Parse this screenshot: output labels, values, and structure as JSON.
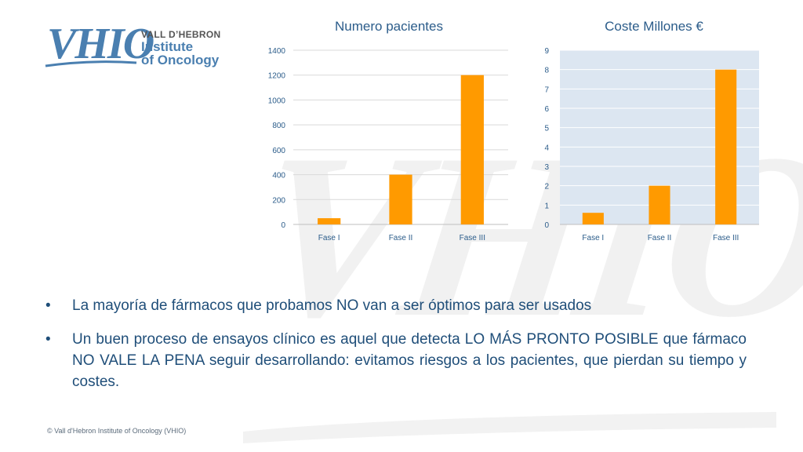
{
  "logo": {
    "mark": "VHIO",
    "line1": "VALL D’HEBRON",
    "line2": "Institute",
    "line3": "of Oncology"
  },
  "charts": {
    "patients": {
      "title": "Numero pacientes"
    },
    "cost": {
      "title": "Coste Millones €"
    }
  },
  "chart_data": [
    {
      "type": "bar",
      "title": "Numero pacientes",
      "categories": [
        "Fase I",
        "Fase II",
        "Fase III"
      ],
      "values": [
        50,
        400,
        1200
      ],
      "ylim": [
        0,
        1400
      ],
      "yticks": [
        0,
        200,
        400,
        600,
        800,
        1000,
        1200,
        1400
      ],
      "grid": true,
      "color": "#ff9a00",
      "background": "#ffffff"
    },
    {
      "type": "bar",
      "title": "Coste Millones €",
      "categories": [
        "Fase I",
        "Fase II",
        "Fase III"
      ],
      "values": [
        0.6,
        2,
        8
      ],
      "ylim": [
        0,
        9
      ],
      "yticks": [
        0,
        1,
        2,
        3,
        4,
        5,
        6,
        7,
        8,
        9
      ],
      "grid": true,
      "color": "#ff9a00",
      "background": "#dce6f1"
    }
  ],
  "bullets": [
    "La mayoría de fármacos que probamos NO van a ser óptimos para ser usados",
    "Un buen proceso de ensayos clínico es aquel que detecta LO MÁS PRONTO POSIBLE que fármaco NO VALE LA PENA seguir desarrollando: evitamos riesgos a los pacientes, que pierdan su tiempo y costes."
  ],
  "bullet_symbol": "•",
  "footer": "© Vall d'Hebron Institute of Oncology (VHIO)"
}
